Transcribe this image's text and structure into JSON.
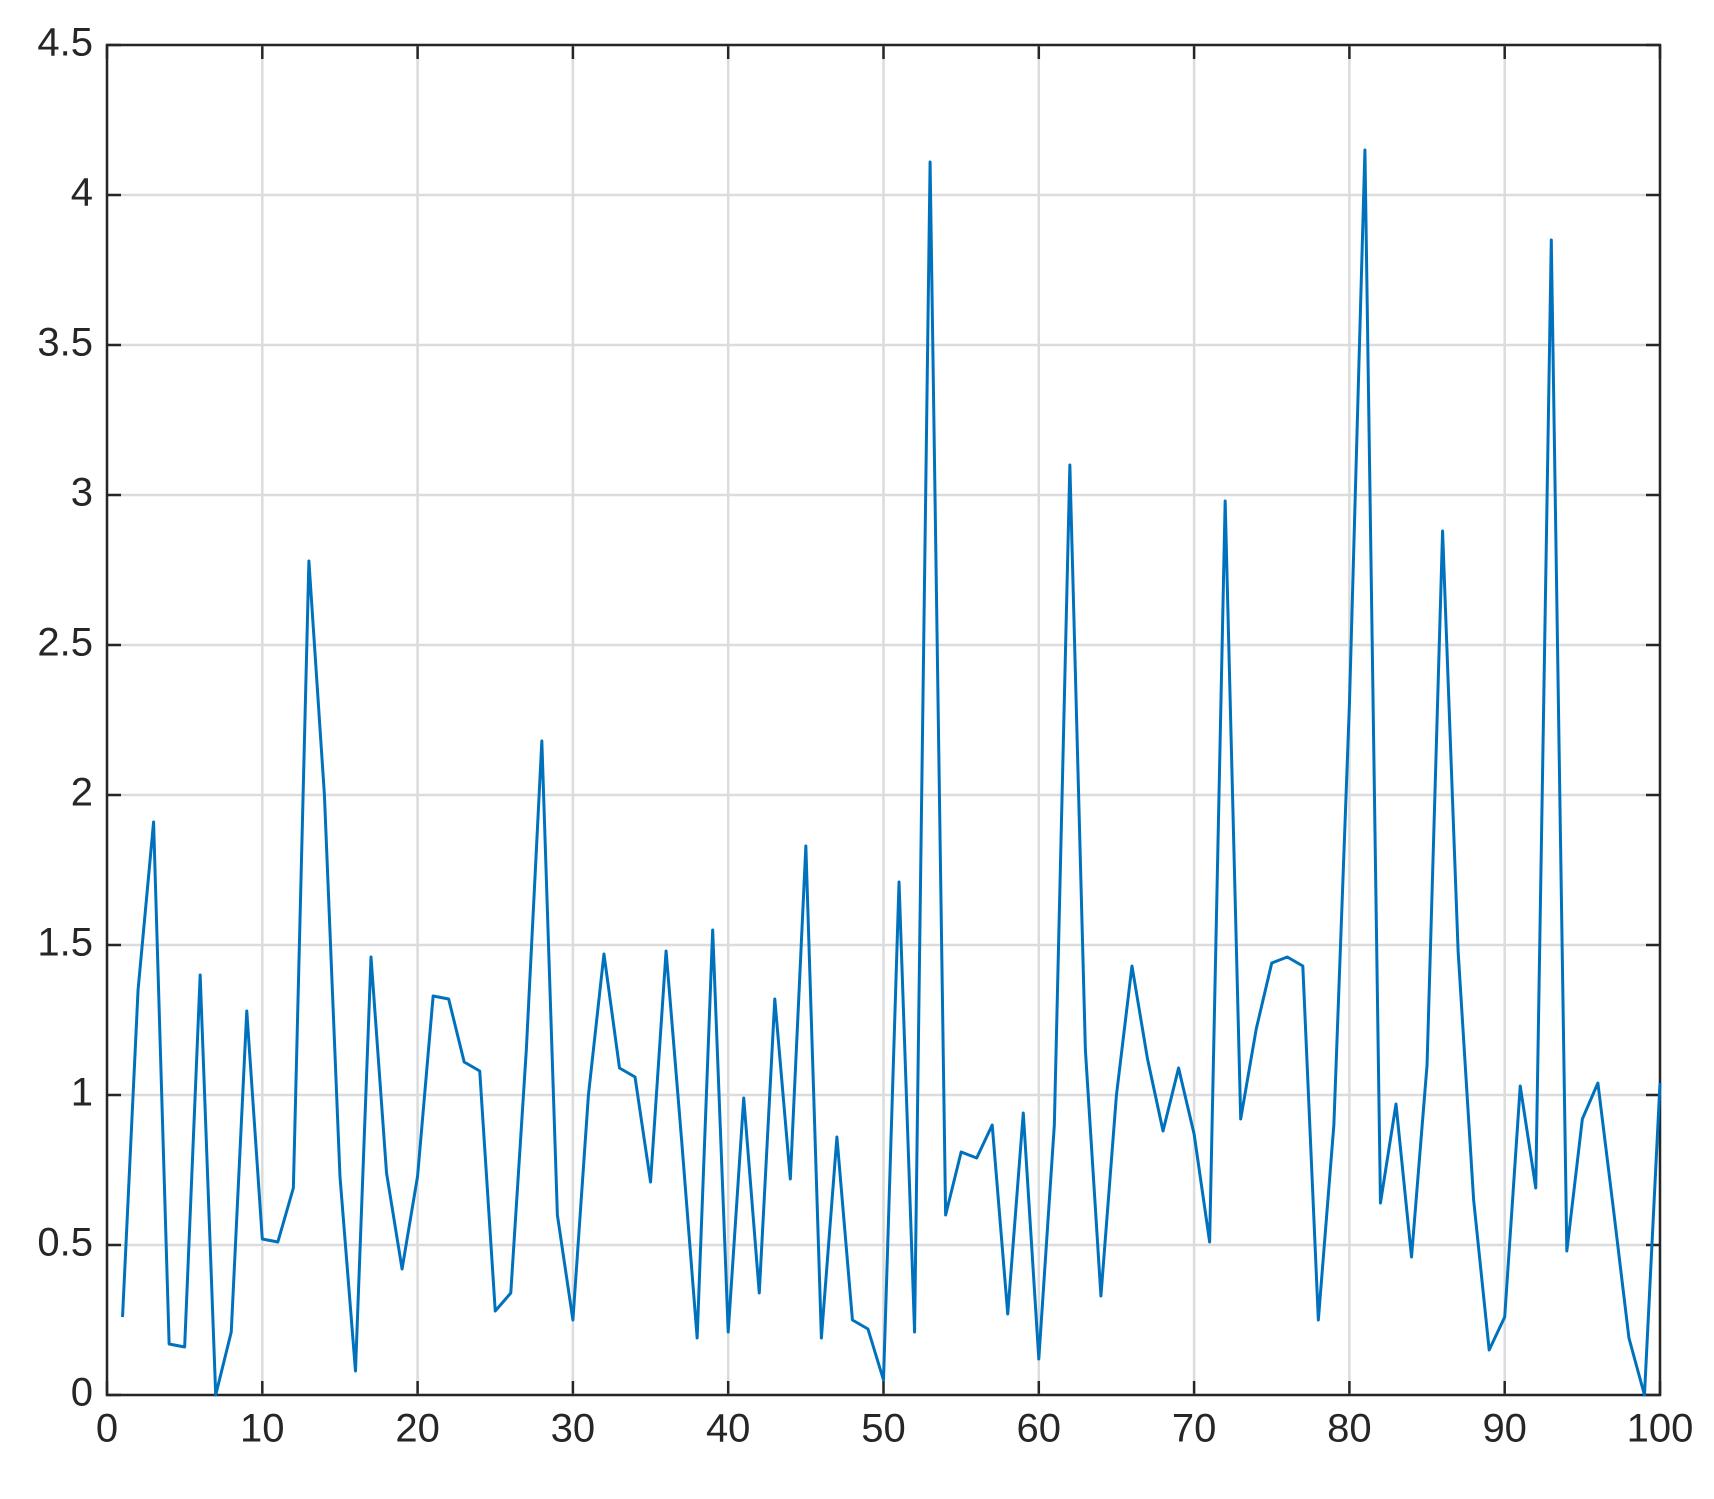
{
  "chart_data": {
    "type": "line",
    "x": [
      1,
      2,
      3,
      4,
      5,
      6,
      7,
      8,
      9,
      10,
      11,
      12,
      13,
      14,
      15,
      16,
      17,
      18,
      19,
      20,
      21,
      22,
      23,
      24,
      25,
      26,
      27,
      28,
      29,
      30,
      31,
      32,
      33,
      34,
      35,
      36,
      37,
      38,
      39,
      40,
      41,
      42,
      43,
      44,
      45,
      46,
      47,
      48,
      49,
      50,
      51,
      52,
      53,
      54,
      55,
      56,
      57,
      58,
      59,
      60,
      61,
      62,
      63,
      64,
      65,
      66,
      67,
      68,
      69,
      70,
      71,
      72,
      73,
      74,
      75,
      76,
      77,
      78,
      79,
      80,
      81,
      82,
      83,
      84,
      85,
      86,
      87,
      88,
      89,
      90,
      91,
      92,
      93,
      94,
      95,
      96,
      97,
      98,
      99,
      100
    ],
    "series": [
      {
        "color": "#0072bd",
        "values": [
          0.26,
          1.35,
          1.91,
          0.17,
          0.16,
          1.4,
          0.0,
          0.21,
          1.28,
          0.52,
          0.51,
          0.69,
          2.78,
          2.0,
          0.73,
          0.08,
          1.46,
          0.74,
          0.42,
          0.73,
          1.33,
          1.32,
          1.11,
          1.08,
          0.28,
          0.34,
          1.15,
          2.18,
          0.6,
          0.25,
          1.0,
          1.47,
          1.09,
          1.06,
          0.71,
          1.48,
          0.85,
          0.19,
          1.55,
          0.21,
          0.99,
          0.34,
          1.32,
          0.72,
          1.83,
          0.19,
          0.86,
          0.25,
          0.22,
          0.05,
          1.71,
          0.21,
          4.11,
          0.6,
          0.81,
          0.79,
          0.9,
          0.27,
          0.94,
          0.12,
          0.9,
          3.1,
          1.15,
          0.33,
          1.0,
          1.43,
          1.12,
          0.88,
          1.09,
          0.87,
          0.51,
          2.98,
          0.92,
          1.22,
          1.44,
          1.46,
          1.43,
          0.25,
          0.9,
          2.3,
          4.15,
          0.64,
          0.97,
          0.46,
          1.1,
          2.88,
          1.48,
          0.65,
          0.15,
          0.26,
          1.03,
          0.69,
          3.85,
          0.48,
          0.92,
          1.04,
          0.62,
          0.19,
          0.0,
          1.04
        ]
      }
    ],
    "xlim": [
      0,
      100
    ],
    "xticks": [
      0,
      10,
      20,
      30,
      40,
      50,
      60,
      70,
      80,
      90,
      100
    ],
    "ylim": [
      0,
      4.5
    ],
    "yticks": [
      0,
      0.5,
      1,
      1.5,
      2,
      2.5,
      3,
      3.5,
      4,
      4.5
    ],
    "grid": true
  }
}
